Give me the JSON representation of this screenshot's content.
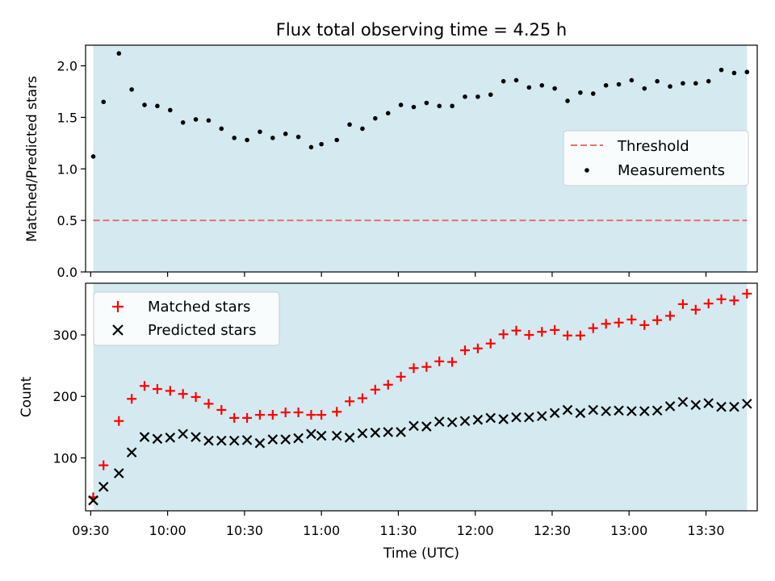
{
  "chart_data": [
    {
      "type": "scatter",
      "title": "Flux total observing time = 4.25 h",
      "xlabel": "",
      "ylabel": "Matched/Predicted stars",
      "ylim": [
        0,
        2.2
      ],
      "yticks": [
        "0.0",
        "0.5",
        "1.0",
        "1.5",
        "2.0"
      ],
      "xlim": [
        "09:28",
        "13:50"
      ],
      "observing_window": [
        "09:31",
        "13:46"
      ],
      "threshold": 0.5,
      "colors": {
        "window": "#d4eaf0",
        "threshold": "#e8706c",
        "measurements": "#000000"
      },
      "legend": {
        "position": "center-right",
        "entries": [
          "Threshold",
          "Measurements"
        ]
      },
      "series": [
        {
          "name": "Measurements",
          "x": [
            "09:31",
            "09:35",
            "09:41",
            "09:46",
            "09:51",
            "09:56",
            "10:01",
            "10:06",
            "10:11",
            "10:16",
            "10:21",
            "10:26",
            "10:31",
            "10:36",
            "10:41",
            "10:46",
            "10:51",
            "10:56",
            "11:00",
            "11:06",
            "11:11",
            "11:16",
            "11:21",
            "11:26",
            "11:31",
            "11:36",
            "11:41",
            "11:46",
            "11:51",
            "11:56",
            "12:01",
            "12:06",
            "12:11",
            "12:16",
            "12:21",
            "12:26",
            "12:31",
            "12:36",
            "12:41",
            "12:46",
            "12:51",
            "12:56",
            "13:01",
            "13:06",
            "13:11",
            "13:16",
            "13:21",
            "13:26",
            "13:31",
            "13:36",
            "13:41",
            "13:46"
          ],
          "values": [
            1.12,
            1.65,
            2.12,
            1.77,
            1.62,
            1.61,
            1.57,
            1.45,
            1.48,
            1.47,
            1.39,
            1.3,
            1.28,
            1.36,
            1.3,
            1.34,
            1.31,
            1.21,
            1.24,
            1.28,
            1.43,
            1.39,
            1.49,
            1.54,
            1.62,
            1.6,
            1.64,
            1.61,
            1.61,
            1.7,
            1.7,
            1.72,
            1.85,
            1.86,
            1.79,
            1.81,
            1.78,
            1.66,
            1.74,
            1.73,
            1.81,
            1.82,
            1.86,
            1.78,
            1.85,
            1.8,
            1.83,
            1.83,
            1.85,
            1.96,
            1.93,
            1.94
          ]
        }
      ]
    },
    {
      "type": "scatter",
      "xlabel": "Time (UTC)",
      "ylabel": "Count",
      "ylim": [
        14,
        384
      ],
      "yticks": [
        "100",
        "200",
        "300"
      ],
      "xlim": [
        "09:28",
        "13:50"
      ],
      "xticks": [
        "09:30",
        "10:00",
        "10:30",
        "11:00",
        "11:30",
        "12:00",
        "12:30",
        "13:00",
        "13:30"
      ],
      "observing_window": [
        "09:31",
        "13:46"
      ],
      "colors": {
        "window": "#d4eaf0",
        "matched": "#ff0000",
        "predicted": "#000000"
      },
      "legend": {
        "position": "top-left",
        "entries": [
          "Matched stars",
          "Predicted stars"
        ]
      },
      "x": [
        "09:31",
        "09:35",
        "09:41",
        "09:46",
        "09:51",
        "09:56",
        "10:01",
        "10:06",
        "10:11",
        "10:16",
        "10:21",
        "10:26",
        "10:31",
        "10:36",
        "10:41",
        "10:46",
        "10:51",
        "10:56",
        "11:00",
        "11:06",
        "11:11",
        "11:16",
        "11:21",
        "11:26",
        "11:31",
        "11:36",
        "11:41",
        "11:46",
        "11:51",
        "11:56",
        "12:01",
        "12:06",
        "12:11",
        "12:16",
        "12:21",
        "12:26",
        "12:31",
        "12:36",
        "12:41",
        "12:46",
        "12:51",
        "12:56",
        "13:01",
        "13:06",
        "13:11",
        "13:16",
        "13:21",
        "13:26",
        "13:31",
        "13:36",
        "13:41",
        "13:46"
      ],
      "series": [
        {
          "name": "Matched stars",
          "marker": "plus",
          "values": [
            36,
            88,
            160,
            196,
            217,
            212,
            209,
            204,
            199,
            188,
            178,
            165,
            165,
            170,
            170,
            174,
            174,
            170,
            170,
            175,
            192,
            197,
            211,
            219,
            232,
            246,
            248,
            257,
            256,
            275,
            278,
            286,
            301,
            307,
            300,
            305,
            308,
            299,
            299,
            311,
            318,
            320,
            325,
            316,
            324,
            331,
            350,
            341,
            351,
            358,
            356,
            367
          ]
        },
        {
          "name": "Predicted stars",
          "marker": "x",
          "values": [
            31,
            53,
            75,
            109,
            134,
            131,
            133,
            139,
            134,
            128,
            128,
            128,
            129,
            124,
            130,
            130,
            132,
            139,
            136,
            136,
            133,
            140,
            141,
            142,
            142,
            152,
            151,
            159,
            158,
            160,
            162,
            165,
            163,
            166,
            166,
            168,
            173,
            178,
            173,
            178,
            176,
            177,
            176,
            176,
            177,
            184,
            191,
            186,
            189,
            183,
            183,
            188
          ]
        }
      ]
    }
  ]
}
